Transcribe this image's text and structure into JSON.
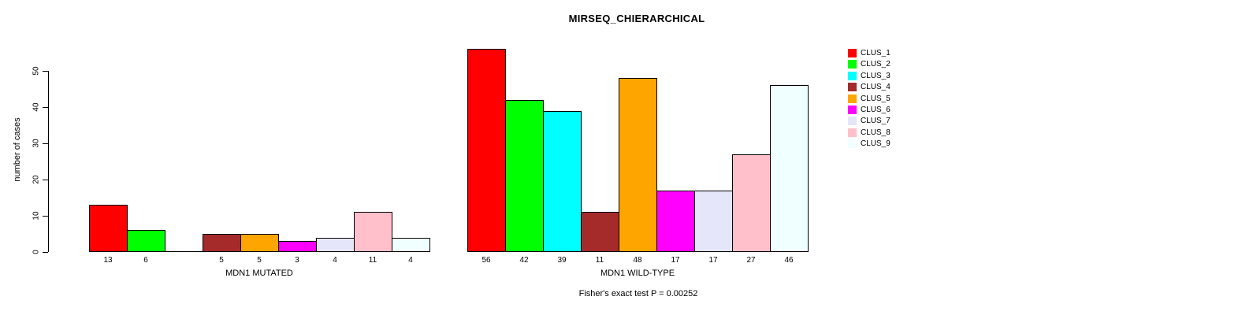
{
  "chart_data": {
    "type": "bar",
    "title": "MIRSEQ_CHIERARCHICAL",
    "ylabel": "number of cases",
    "xlabel": "",
    "ylim": [
      0,
      50
    ],
    "y_ticks": [
      "0",
      "10",
      "20",
      "30",
      "40",
      "50"
    ],
    "grid": false,
    "legend_position": "right",
    "annotation": "Fisher's exact test P = 0.00252",
    "legend": [
      {
        "label": "CLUS_1",
        "color": "#FF0000"
      },
      {
        "label": "CLUS_2",
        "color": "#00FF00"
      },
      {
        "label": "CLUS_3",
        "color": "#00FFFF"
      },
      {
        "label": "CLUS_4",
        "color": "#A52A2A"
      },
      {
        "label": "CLUS_5",
        "color": "#FFA500"
      },
      {
        "label": "CLUS_6",
        "color": "#FF00FF"
      },
      {
        "label": "CLUS_7",
        "color": "#E6E6FA"
      },
      {
        "label": "CLUS_8",
        "color": "#FFC0CB"
      },
      {
        "label": "CLUS_9",
        "color": "#F0FFFF"
      }
    ],
    "groups": [
      {
        "xlabel": "MDN1 MUTATED",
        "categories": [
          "CLUS_1",
          "CLUS_2",
          "CLUS_3",
          "CLUS_4",
          "CLUS_5",
          "CLUS_6",
          "CLUS_7",
          "CLUS_8",
          "CLUS_9"
        ],
        "values": [
          13,
          6,
          0,
          5,
          5,
          3,
          4,
          11,
          4
        ],
        "bar_labels": [
          "13",
          "6",
          "",
          "5",
          "5",
          "3",
          "4",
          "11",
          "4"
        ]
      },
      {
        "xlabel": "MDN1 WILD-TYPE",
        "categories": [
          "CLUS_1",
          "CLUS_2",
          "CLUS_3",
          "CLUS_4",
          "CLUS_5",
          "CLUS_6",
          "CLUS_7",
          "CLUS_8",
          "CLUS_9"
        ],
        "values": [
          56,
          42,
          39,
          11,
          48,
          17,
          17,
          27,
          46
        ],
        "bar_labels": [
          "56",
          "42",
          "39",
          "11",
          "48",
          "17",
          "17",
          "27",
          "46"
        ]
      }
    ]
  }
}
